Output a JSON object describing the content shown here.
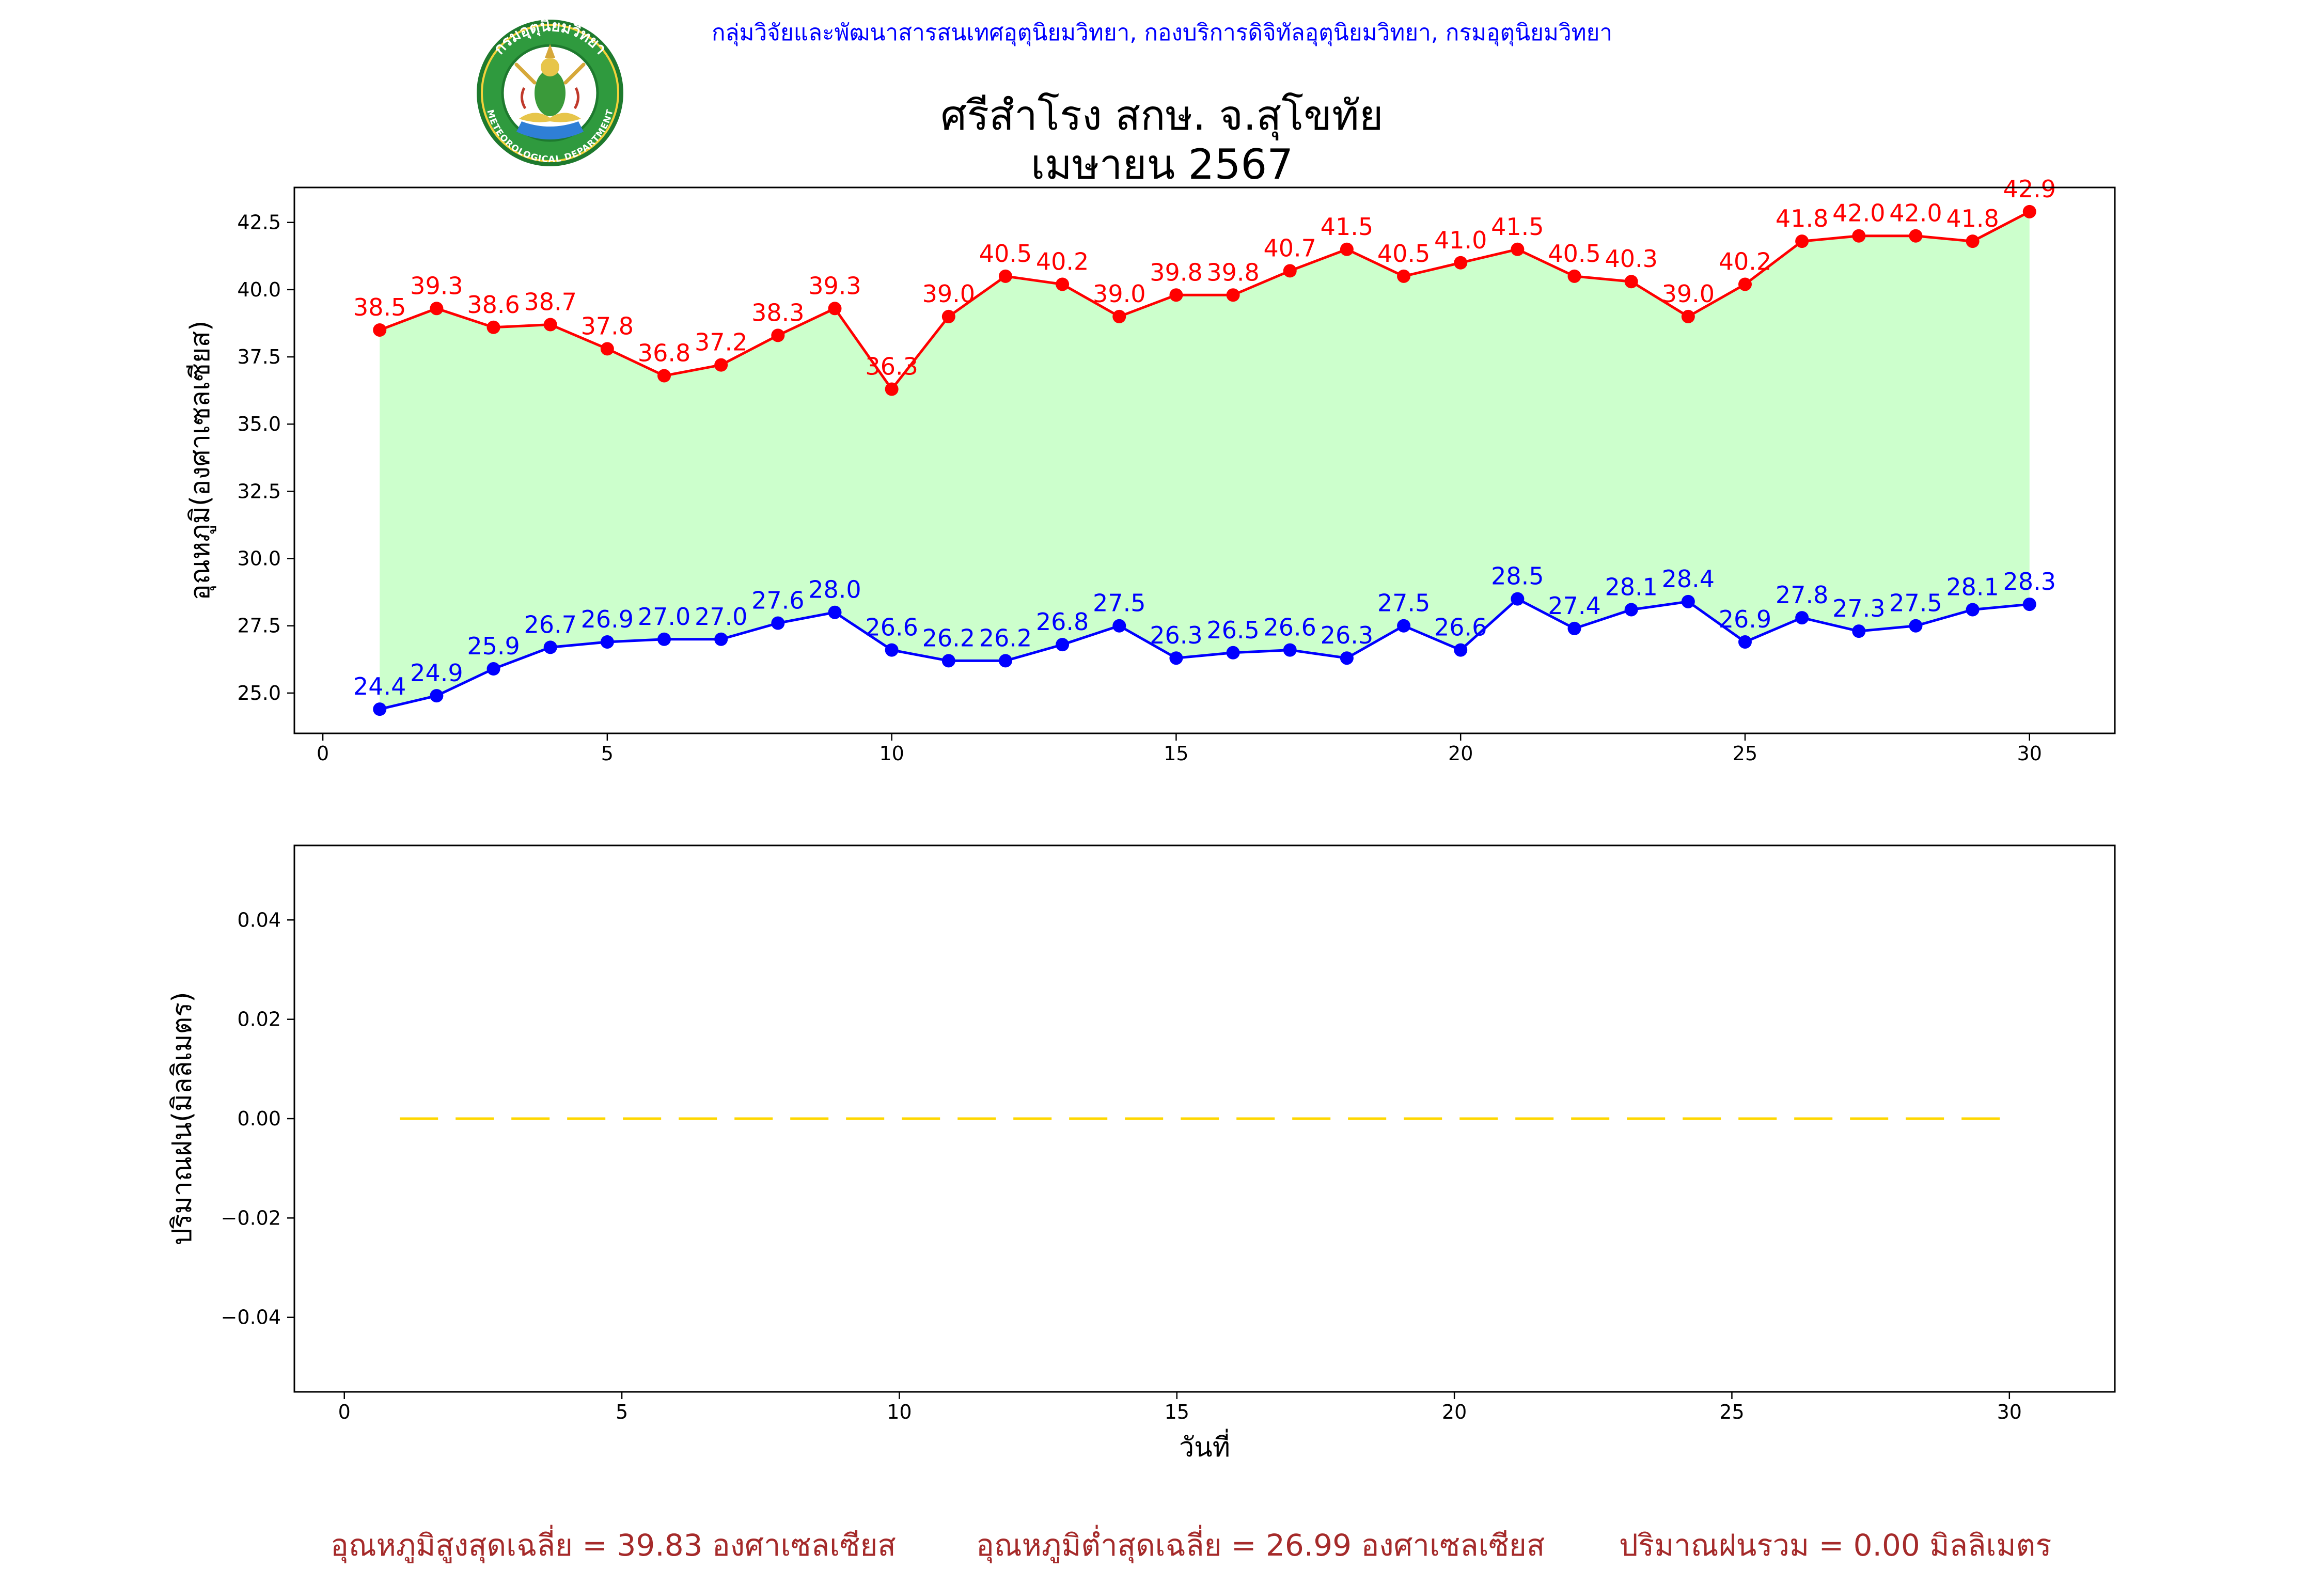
{
  "header": {
    "line": "กลุ่มวิจัยและพัฒนาสารสนเทศอุตุนิยมวิทยา, กองบริการดิจิทัลอุตุนิยมวิทยา, กรมอุตุนิยมวิทยา",
    "title_line1": "ศรีสำโรง สกษ. จ.สุโขทัย",
    "title_line2": "เมษายน 2567"
  },
  "logo": {
    "arc_text_top": "กรมอุตุนิยมวิทยา",
    "arc_text_bottom": "METEOROLOGICAL DEPARTMENT"
  },
  "colors": {
    "max_line": "#ff0000",
    "min_line": "#0000ff",
    "fill": "#ccffcc",
    "rain_line": "#ffd700",
    "header": "#0000ff",
    "footer": "#a52a2a"
  },
  "chart_data": [
    {
      "type": "line",
      "ylabel": "อุณหภูมิ(องศาเซลเซียส)",
      "x": [
        1,
        2,
        3,
        4,
        5,
        6,
        7,
        8,
        9,
        10,
        11,
        12,
        13,
        14,
        15,
        16,
        17,
        18,
        19,
        20,
        21,
        22,
        23,
        24,
        25,
        26,
        27,
        28,
        29,
        30
      ],
      "xlim": [
        -0.5,
        31.5
      ],
      "ylim": [
        23.5,
        43.8
      ],
      "xticks": [
        0,
        5,
        10,
        15,
        20,
        25,
        30
      ],
      "yticks": [
        25.0,
        27.5,
        30.0,
        32.5,
        35.0,
        37.5,
        40.0,
        42.5
      ],
      "xtick_labels": [
        "0",
        "5",
        "10",
        "15",
        "20",
        "25",
        "30"
      ],
      "ytick_labels": [
        "25.0",
        "27.5",
        "30.0",
        "32.5",
        "35.0",
        "37.5",
        "40.0",
        "42.5"
      ],
      "fill_between": true,
      "series": [
        {
          "role": "max",
          "values": [
            38.5,
            39.3,
            38.6,
            38.7,
            37.8,
            36.8,
            37.2,
            38.3,
            39.3,
            36.3,
            39.0,
            40.5,
            40.2,
            39.0,
            39.8,
            39.8,
            40.7,
            41.5,
            40.5,
            41.0,
            41.5,
            40.5,
            40.3,
            39.0,
            40.2,
            41.8,
            42.0,
            42.0,
            41.8,
            42.9
          ]
        },
        {
          "role": "min",
          "values": [
            24.4,
            24.9,
            25.9,
            26.7,
            26.9,
            27.0,
            27.0,
            27.6,
            28.0,
            26.6,
            26.2,
            26.2,
            26.8,
            27.5,
            26.3,
            26.5,
            26.6,
            26.3,
            27.5,
            26.6,
            28.5,
            27.4,
            28.1,
            28.4,
            26.9,
            27.8,
            27.3,
            27.5,
            28.1,
            28.3
          ]
        }
      ]
    },
    {
      "type": "line",
      "ylabel": "ปริมาณฝน(มิลลิเมตร)",
      "xlabel": "วันที่",
      "x": [
        1,
        2,
        3,
        4,
        5,
        6,
        7,
        8,
        9,
        10,
        11,
        12,
        13,
        14,
        15,
        16,
        17,
        18,
        19,
        20,
        21,
        22,
        23,
        24,
        25,
        26,
        27,
        28,
        29,
        30
      ],
      "xlim": [
        -0.9,
        31.9
      ],
      "ylim": [
        -0.055,
        0.055
      ],
      "xticks": [
        0,
        5,
        10,
        15,
        20,
        25,
        30
      ],
      "yticks": [
        -0.04,
        -0.02,
        0.0,
        0.02,
        0.04
      ],
      "xtick_labels": [
        "0",
        "5",
        "10",
        "15",
        "20",
        "25",
        "30"
      ],
      "ytick_labels": [
        "−0.04",
        "−0.02",
        "0.00",
        "0.02",
        "0.04"
      ],
      "series": [
        {
          "role": "rain",
          "style": "dashed",
          "values": [
            0,
            0,
            0,
            0,
            0,
            0,
            0,
            0,
            0,
            0,
            0,
            0,
            0,
            0,
            0,
            0,
            0,
            0,
            0,
            0,
            0,
            0,
            0,
            0,
            0,
            0,
            0,
            0,
            0,
            0
          ]
        }
      ]
    }
  ],
  "footer": {
    "avg_max": "อุณหภูมิสูงสุดเฉลี่ย = 39.83 องศาเซลเซียส",
    "avg_min": "อุณหภูมิต่ำสุดเฉลี่ย = 26.99 องศาเซลเซียส",
    "total_rain": "ปริมาณฝนรวม = 0.00 มิลลิเมตร"
  }
}
